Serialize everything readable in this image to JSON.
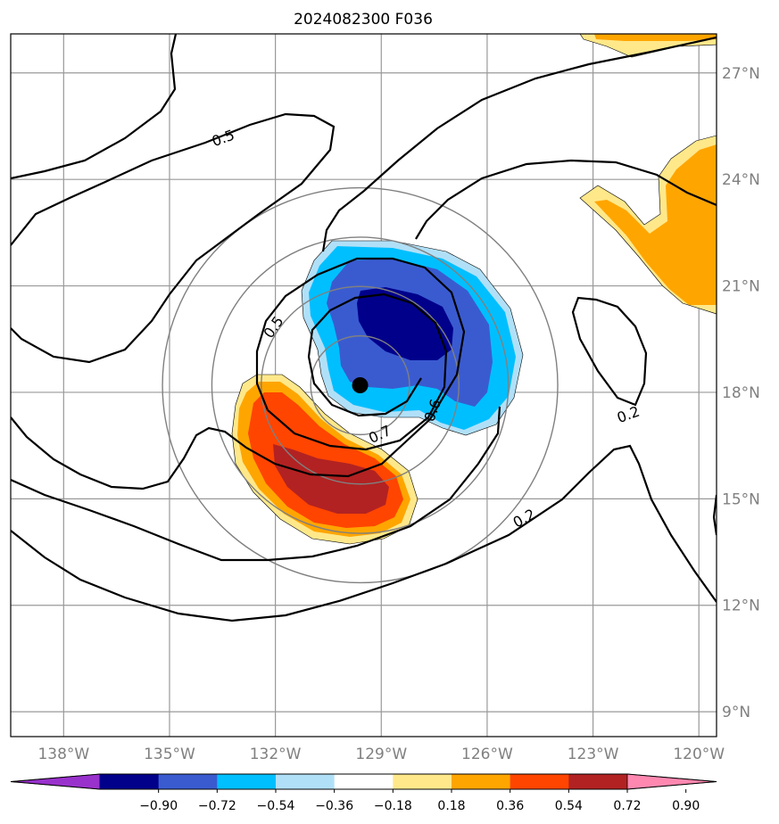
{
  "chart_data": {
    "type": "heatmap",
    "title": "2024082300 F036",
    "map_extent": {
      "lon": [
        -139.5,
        -119.5
      ],
      "lat": [
        8.3,
        28.1
      ]
    },
    "x_ticks": [
      {
        "lon": -138,
        "label": "138°W"
      },
      {
        "lon": -135,
        "label": "135°W"
      },
      {
        "lon": -132,
        "label": "132°W"
      },
      {
        "lon": -129,
        "label": "129°W"
      },
      {
        "lon": -126,
        "label": "126°W"
      },
      {
        "lon": -123,
        "label": "123°W"
      },
      {
        "lon": -120,
        "label": "120°W"
      }
    ],
    "y_ticks": [
      {
        "lat": 9,
        "label": "9°N"
      },
      {
        "lat": 12,
        "label": "12°N"
      },
      {
        "lat": 15,
        "label": "15°N"
      },
      {
        "lat": 18,
        "label": "18°N"
      },
      {
        "lat": 21,
        "label": "21°N"
      },
      {
        "lat": 24,
        "label": "24°N"
      },
      {
        "lat": 27,
        "label": "27°N"
      }
    ],
    "grid": true,
    "storm_center": {
      "lon": -129.6,
      "lat": 18.2
    },
    "range_rings_deg": [
      2,
      4,
      6,
      8
    ],
    "colorbar": {
      "extend": "both",
      "boundaries": [
        -0.9,
        -0.72,
        -0.54,
        -0.36,
        -0.18,
        0.18,
        0.36,
        0.54,
        0.72,
        0.9
      ],
      "tick_labels": [
        "−0.90",
        "−0.72",
        "−0.54",
        "−0.36",
        "−0.18",
        "0.18",
        "0.36",
        "0.54",
        "0.72",
        "0.90"
      ],
      "colors": [
        "#9932cc",
        "#00008b",
        "#3a5bd0",
        "#00bfff",
        "#b0e0f8",
        "#ffffff",
        "#ffe88a",
        "#ffa500",
        "#ff4500",
        "#b22222",
        "#ff88b0"
      ]
    },
    "contour_labels": [
      "0.5",
      "0.5",
      "0.7",
      "0.6",
      "0.2",
      "0.2"
    ]
  }
}
